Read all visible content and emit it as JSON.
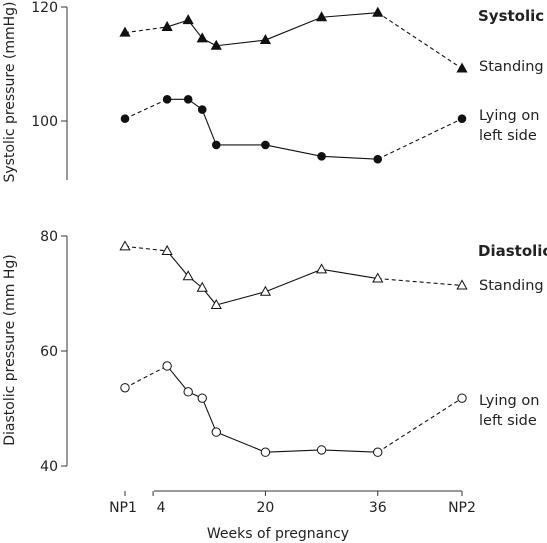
{
  "chart_data": [
    {
      "type": "line",
      "title": "Systolic",
      "xlabel": "Weeks of pregnancy",
      "ylabel": "Systolic pressure (mmHg)",
      "ylim": [
        84,
        120
      ],
      "yticks": [
        100,
        120
      ],
      "x_tick_labels": [
        "NP1",
        "4",
        "20",
        "36",
        "NP2"
      ],
      "x_tick_positions": [
        0,
        4,
        20,
        36,
        48
      ],
      "dashed_segments": "between NP1 and 4-week points and between 36 weeks and NP2",
      "series": [
        {
          "name": "Standing",
          "marker": "filled-triangle",
          "x": [
            0,
            6,
            9,
            11,
            13,
            20,
            28,
            36,
            48
          ],
          "y": [
            115.5,
            116.5,
            117.7,
            114.5,
            113.2,
            114.2,
            118.2,
            119,
            109.2
          ]
        },
        {
          "name": "Lying on left side",
          "marker": "filled-circle",
          "x": [
            0,
            6,
            9,
            11,
            13,
            20,
            28,
            36,
            48
          ],
          "y": [
            100.4,
            103.8,
            103.8,
            102,
            95.8,
            95.8,
            93.8,
            93.3,
            100.4
          ]
        }
      ]
    },
    {
      "type": "line",
      "title": "Diastolic",
      "xlabel": "Weeks of pregnancy",
      "ylabel": "Diastolic pressure (mm Hg)",
      "ylim": [
        40,
        80
      ],
      "yticks": [
        40,
        60,
        80
      ],
      "x_tick_labels": [
        "NP1",
        "4",
        "20",
        "36",
        "NP2"
      ],
      "x_tick_positions": [
        0,
        4,
        20,
        36,
        48
      ],
      "dashed_segments": "between NP1 and 4-week points and between 36 weeks and NP2",
      "series": [
        {
          "name": "Standing",
          "marker": "open-triangle",
          "x": [
            0,
            6,
            9,
            11,
            13,
            20,
            28,
            36,
            48
          ],
          "y": [
            78.2,
            77.4,
            73,
            71,
            68,
            70.3,
            74.2,
            72.6,
            71.4
          ]
        },
        {
          "name": "Lying on left side",
          "marker": "open-circle",
          "x": [
            0,
            6,
            9,
            11,
            13,
            20,
            28,
            36,
            48
          ],
          "y": [
            53.6,
            57.4,
            52.9,
            51.8,
            45.9,
            42.4,
            42.8,
            42.4,
            51.8
          ]
        }
      ]
    }
  ]
}
